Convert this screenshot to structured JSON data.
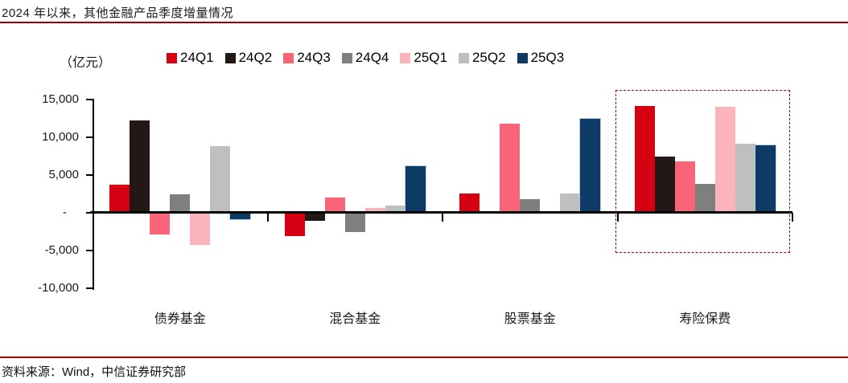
{
  "header": {
    "title": "2024 年以来，其他金融产品季度增量情况"
  },
  "footer": {
    "source": "资料来源：Wind，中信证券研究部"
  },
  "colors": {
    "rule_red": "#a00000",
    "highlight_box_red": "#c00000",
    "axis_black": "#000000",
    "background": "#ffffff"
  },
  "chart_data": {
    "type": "bar",
    "title": "2024 年以来，其他金融产品季度增量情况",
    "unit_label": "（亿元）",
    "xlabel": "",
    "ylabel": "（亿元）",
    "ylim": [
      -10000,
      15000
    ],
    "grid": false,
    "legend_position": "top",
    "categories": [
      "债券基金",
      "混合基金",
      "股票基金",
      "寿险保费"
    ],
    "series": [
      {
        "name": "24Q1",
        "color": "#d50012",
        "values": [
          3700,
          -3100,
          2600,
          14100
        ]
      },
      {
        "name": "24Q2",
        "color": "#231815",
        "values": [
          12200,
          -1100,
          0,
          7500
        ]
      },
      {
        "name": "24Q3",
        "color": "#fa6478",
        "values": [
          -2900,
          2000,
          11800,
          6800
        ]
      },
      {
        "name": "24Q4",
        "color": "#7f7f7f",
        "values": [
          2500,
          -2500,
          1800,
          3800
        ]
      },
      {
        "name": "25Q1",
        "color": "#fbb4bb",
        "values": [
          -4300,
          600,
          0,
          14000
        ]
      },
      {
        "name": "25Q2",
        "color": "#bfbfbf",
        "values": [
          8800,
          1000,
          2600,
          9100
        ]
      },
      {
        "name": "25Q3",
        "color": "#0e3a66",
        "values": [
          -900,
          6200,
          12400,
          8900
        ]
      }
    ],
    "y_ticks": [
      {
        "label": "15,000",
        "value": 15000
      },
      {
        "label": "10,000",
        "value": 10000
      },
      {
        "label": "5,000",
        "value": 5000
      },
      {
        "label": "-",
        "value": 0
      },
      {
        "label": "-5,000",
        "value": -5000
      },
      {
        "label": "-10,000",
        "value": -10000
      }
    ],
    "annotations": [
      {
        "type": "highlight-box",
        "category": "寿险保费",
        "style": "dashed",
        "color": "#c00000"
      }
    ]
  }
}
